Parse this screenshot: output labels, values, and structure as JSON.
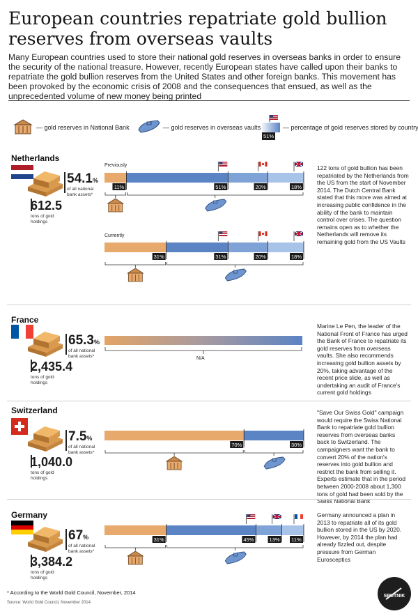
{
  "title": "European countries repatriate gold bullion reserves from overseas vaults",
  "intro": "Many European countries used to store their national gold reserves in overseas banks in order to ensure the security of the national treasure. However, recently European states have called upon their banks to repatriate the gold bullion reserves from the United States and other foreign banks. This movement has been provoked by the economic crisis of 2008 and the consequences that ensued, as well as the unprecedented volume of new money being printed",
  "legend": {
    "national": "— gold reserves in National Bank",
    "overseas": "— gold reserves in overseas vaults",
    "percentage": "— percentage of gold reserves stored by country",
    "sample_pct": "51%"
  },
  "colors": {
    "national": "#e7a96c",
    "us": "#5b84c4",
    "mid": "#7fa3d6",
    "light": "#a8c3e8"
  },
  "icons": {
    "national": "bank-icon",
    "overseas": "submarine-icon",
    "bar": "gold-bar-icon"
  },
  "countries": {
    "netherlands": {
      "name": "Netherlands",
      "pct": "54.1",
      "pct_unit": "%",
      "pct_sub": "of all national bank assets*",
      "tons": "612.5",
      "tons_sub": "tons of gold holdings",
      "previously": "Previously",
      "currently": "Currently",
      "desc": "122 tons of gold bullion has been repatriated by the Netherlands from the US from the start of November 2014. The Dutch Central Bank stated that this move was aimed at increasing public confidence in the ability of the bank to maintain control over crises. The question remains open as to whether the Netherlands will remove its remaining gold from the US Vaults"
    },
    "france": {
      "name": "France",
      "pct": "65.3",
      "pct_unit": "%",
      "pct_sub": "of all national bank assets*",
      "tons": "2,435.4",
      "tons_sub": "tons of gold holdings",
      "na": "N/A",
      "desc": "Marine Le Pen, the leader of the National Front of France has urged the Bank of France to repatriate its gold reserves from overseas vaults. She also recommends increasing gold bullion assets by 20%, taking advantage of the recent price slide, as well as undertaking an audit of France's current gold holdings"
    },
    "switzerland": {
      "name": "Switzerland",
      "pct": "7.5",
      "pct_unit": "%",
      "pct_sub": "of all national bank assets*",
      "tons": "1,040.0",
      "tons_sub": "tons of gold holdings",
      "desc": "\"Save Our Swiss Gold\" campaign would require the Swiss National Bank to repatriate gold bullion reserves from overseas banks back to Switzerland. The campaigners want the bank to convert 20% of the nation's reserves into gold bullion and restrict the bank from selling it. Experts estimate that in the period between 2000-2008 about 1,300 tons of gold had been sold by the Swiss National Bank"
    },
    "germany": {
      "name": "Germany",
      "pct": "67",
      "pct_unit": "%",
      "pct_sub": "of all national bank assets*",
      "tons": "3,384.2",
      "tons_sub": "tons of gold holdings",
      "desc": "Germany announced a plan in 2013 to repatriate all of its gold bullion stored in the US by 2020. However, by 2014 the plan had already fizzled out, despite pressure from German Eurosceptics"
    }
  },
  "chart_data": [
    {
      "type": "bar",
      "title": "Netherlands — Previously",
      "categories": [
        "National Bank",
        "United States",
        "Canada",
        "United Kingdom"
      ],
      "values": [
        11,
        51,
        20,
        18
      ],
      "labels": [
        "11%",
        "51%",
        "20%",
        "18%"
      ]
    },
    {
      "type": "bar",
      "title": "Netherlands — Currently",
      "categories": [
        "National Bank",
        "United States",
        "Canada",
        "United Kingdom"
      ],
      "values": [
        31,
        31,
        20,
        18
      ],
      "labels": [
        "31%",
        "31%",
        "20%",
        "18%"
      ]
    },
    {
      "type": "bar",
      "title": "France",
      "categories": [],
      "values": [],
      "labels": [
        "N/A"
      ]
    },
    {
      "type": "bar",
      "title": "Switzerland",
      "categories": [
        "National Bank",
        "Overseas vaults"
      ],
      "values": [
        70,
        30
      ],
      "labels": [
        "70%",
        "30%"
      ]
    },
    {
      "type": "bar",
      "title": "Germany",
      "categories": [
        "National Bank",
        "United States",
        "United Kingdom",
        "France"
      ],
      "values": [
        31,
        45,
        13,
        11
      ],
      "labels": [
        "31%",
        "45%",
        "13%",
        "11%"
      ]
    }
  ],
  "footnote": "* According to the World Gold Council, November, 2014",
  "source": "Source: World Gold Council, November 2014",
  "brand": "SPUTNIK"
}
